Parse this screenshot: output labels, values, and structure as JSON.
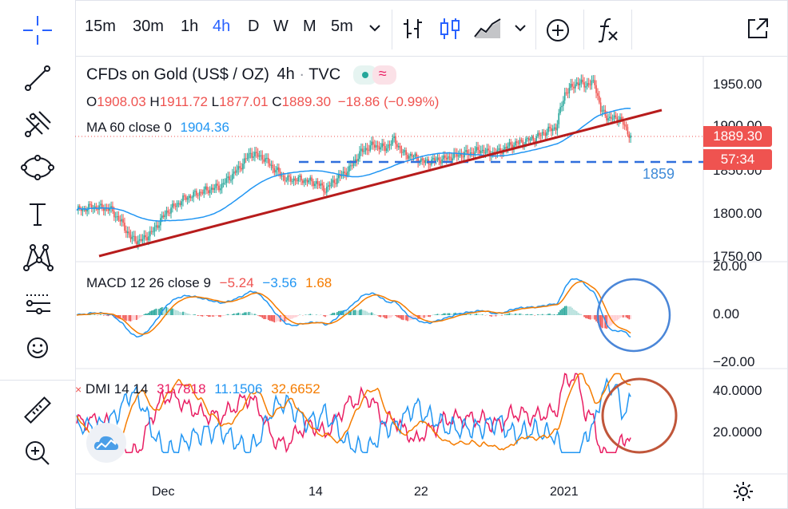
{
  "toolbar": {
    "intervals": [
      "15m",
      "30m",
      "1h",
      "4h",
      "D",
      "W",
      "M",
      "5m"
    ],
    "active_interval": "4h"
  },
  "legend": {
    "symbol": "CFDs on Gold (US$ / OZ)",
    "interval": "4h",
    "exchange": "TVC",
    "ohlc": {
      "o_label": "O",
      "o": "1908.03",
      "h_label": "H",
      "h": "1911.72",
      "l_label": "L",
      "l": "1877.01",
      "c_label": "C",
      "c": "1889.30",
      "chg": "−18.86 (−0.99%)"
    },
    "ma_label": "MA 60 close 0",
    "ma_value": "1904.36",
    "macd_label": "MACD 12 26 close 9",
    "macd_hist": "−5.24",
    "macd_line": "−3.56",
    "macd_signal": "1.68",
    "dmi_label": "DMI 14 14",
    "dmi_plus": "31.7818",
    "dmi_minus": "11.1506",
    "dmi_adx": "32.6652"
  },
  "price_axis": {
    "ticks": [
      "1950.00",
      "1900.00",
      "1850.00",
      "1800.00",
      "1750.00"
    ],
    "current_price": "1889.30",
    "countdown": "57:34",
    "level_label": "1859"
  },
  "macd_axis": {
    "ticks": [
      "20.00",
      "0.00",
      "−20.00"
    ]
  },
  "dmi_axis": {
    "ticks": [
      "40.0000",
      "20.0000"
    ]
  },
  "time_axis": {
    "ticks": [
      "Dec",
      "14",
      "22",
      "2021"
    ]
  },
  "colors": {
    "accent": "#2962ff",
    "up": "#26a69a",
    "down": "#ef5350",
    "ma": "#2196f3",
    "trendline": "#b71c1c",
    "macd_line": "#2196f3",
    "signal_line": "#f57c00",
    "dmi_plus": "#e91e63",
    "dmi_minus": "#2196f3",
    "adx": "#f57c00"
  }
}
